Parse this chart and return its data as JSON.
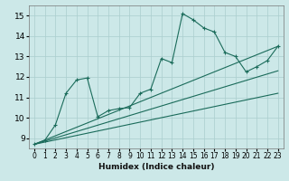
{
  "xlabel": "Humidex (Indice chaleur)",
  "bg_color": "#cce8e8",
  "line_color": "#1a6b5a",
  "grid_color": "#aacece",
  "xlim": [
    -0.5,
    23.5
  ],
  "ylim": [
    8.5,
    15.5
  ],
  "xticks": [
    0,
    1,
    2,
    3,
    4,
    5,
    6,
    7,
    8,
    9,
    10,
    11,
    12,
    13,
    14,
    15,
    16,
    17,
    18,
    19,
    20,
    21,
    22,
    23
  ],
  "yticks": [
    9,
    10,
    11,
    12,
    13,
    14,
    15
  ],
  "line1_x": [
    0,
    1,
    2,
    3,
    4,
    5,
    6,
    7,
    8,
    9,
    10,
    11,
    12,
    13,
    14,
    15,
    16,
    17,
    18,
    19,
    20,
    21,
    22,
    23
  ],
  "line1_y": [
    8.7,
    8.9,
    9.65,
    11.2,
    11.85,
    11.95,
    10.05,
    10.35,
    10.45,
    10.5,
    11.2,
    11.4,
    12.9,
    12.7,
    15.1,
    14.8,
    14.4,
    14.2,
    13.2,
    13.0,
    12.25,
    12.5,
    12.8,
    13.5
  ],
  "line2_x": [
    0,
    23
  ],
  "line2_y": [
    8.7,
    13.5
  ],
  "line3_x": [
    0,
    23
  ],
  "line3_y": [
    8.7,
    12.3
  ],
  "line4_x": [
    0,
    23
  ],
  "line4_y": [
    8.7,
    11.2
  ]
}
